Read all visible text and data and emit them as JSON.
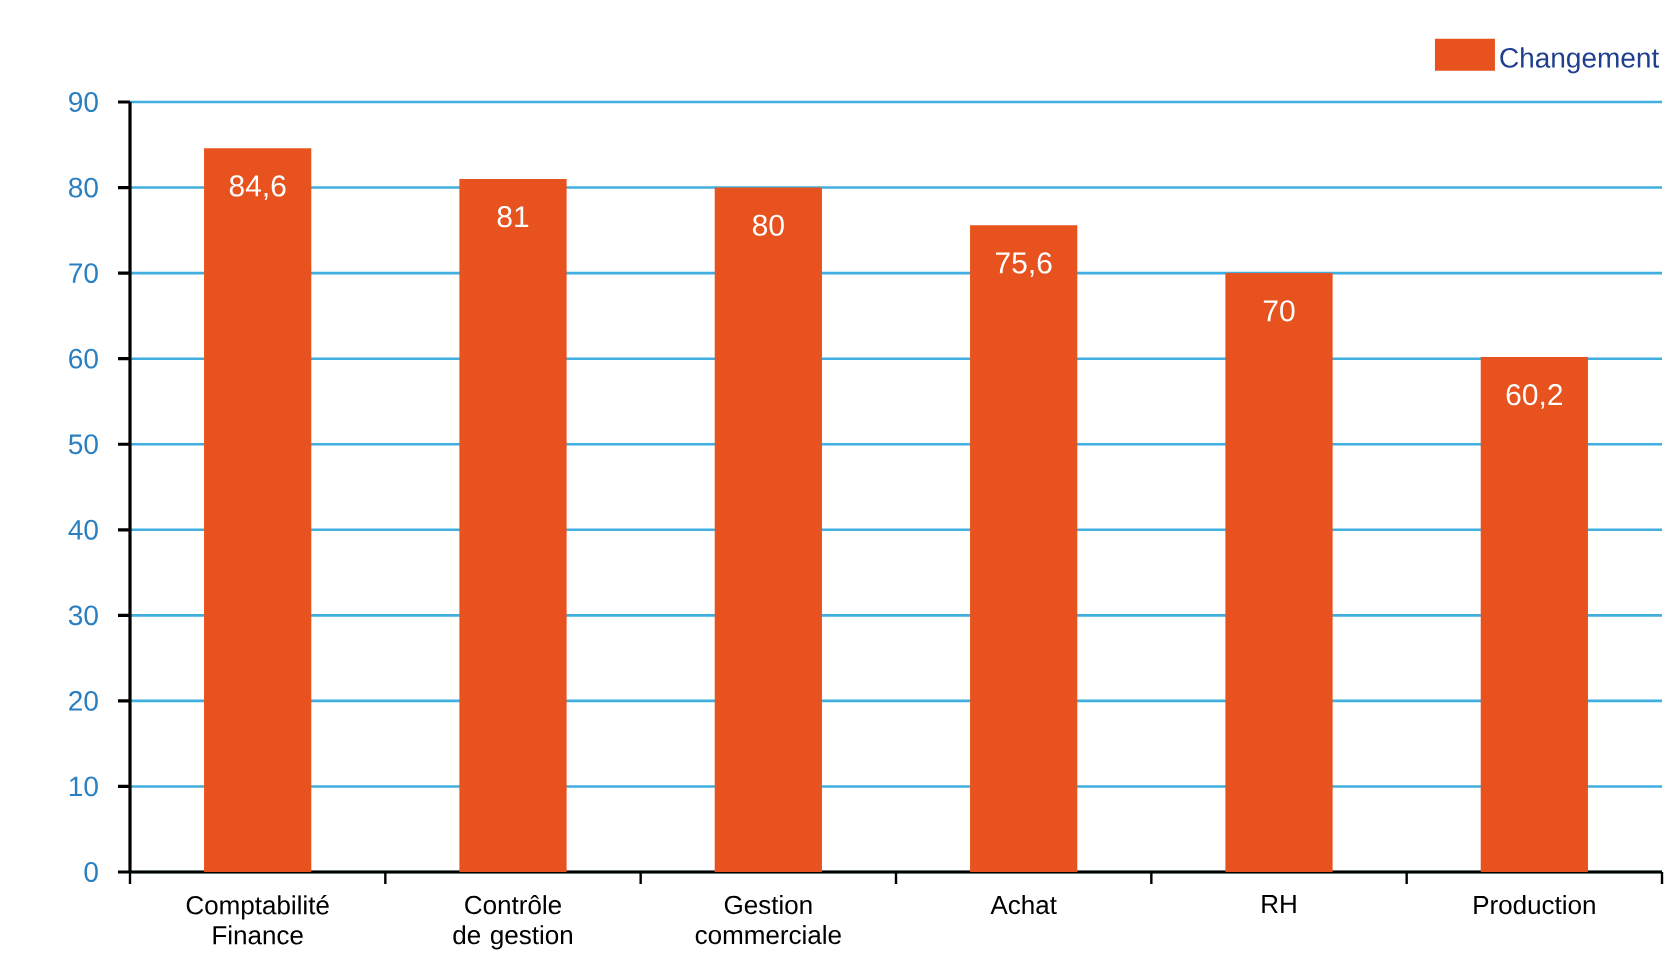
{
  "chart_data": {
    "type": "bar",
    "categories": [
      "Comptabilité Finance",
      "Contrôle de gestion",
      "Gestion commerciale",
      "Achat",
      "RH",
      "Production"
    ],
    "series": [
      {
        "name": "Changement",
        "color": "#e8521e",
        "values": [
          84.6,
          81,
          80,
          75.6,
          70,
          60.2
        ],
        "value_labels": [
          "84,6",
          "81",
          "80",
          "75,6",
          "70",
          "60,2"
        ]
      }
    ],
    "ylim": [
      0,
      90
    ],
    "yticks": [
      0,
      10,
      20,
      30,
      40,
      50,
      60,
      70,
      80,
      90
    ],
    "grid": "y",
    "legend": "top right"
  }
}
